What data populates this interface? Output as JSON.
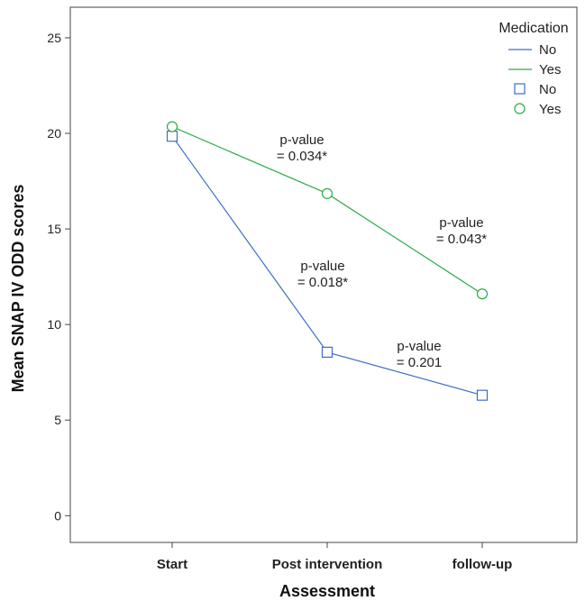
{
  "chart_data": {
    "type": "line",
    "title": "",
    "xlabel": "Assessment",
    "ylabel": "Mean SNAP IV ODD scores",
    "categories": [
      "Start",
      "Post intervention",
      "follow-up"
    ],
    "ylim": [
      -1.4,
      26.6
    ],
    "yticks": [
      0,
      5,
      10,
      15,
      20,
      25
    ],
    "grid": false,
    "legend_placement": "top-right",
    "legend": {
      "title": "Medication",
      "line_entries": [
        "No",
        "Yes"
      ],
      "marker_entries": [
        "No",
        "Yes"
      ]
    },
    "series": [
      {
        "name": "No",
        "values": [
          19.85,
          8.55,
          6.3
        ],
        "color": "#3b6fc4",
        "marker": "square"
      },
      {
        "name": "Yes",
        "values": [
          20.35,
          16.85,
          11.6
        ],
        "color": "#2eab4a",
        "marker": "circle"
      }
    ],
    "annotations": [
      {
        "line1": "p-value",
        "line2": "= 0.034*"
      },
      {
        "line1": "p-value",
        "line2": "= 0.043*"
      },
      {
        "line1": "p-value",
        "line2": "= 0.018*"
      },
      {
        "line1": "p-value",
        "line2": "= 0.201"
      }
    ]
  }
}
